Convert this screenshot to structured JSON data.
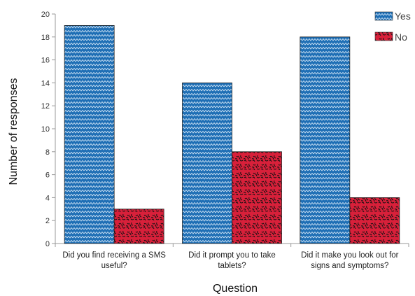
{
  "chart_data": {
    "type": "bar",
    "categories": [
      [
        "Did you find receiving a SMS",
        "useful?"
      ],
      [
        "Did it prompt you to take",
        "tablets?"
      ],
      [
        "Did it make you look out for",
        "signs and symptoms?"
      ]
    ],
    "series": [
      {
        "name": "Yes",
        "values": [
          19,
          14,
          18
        ],
        "color": "#1f6fb5",
        "pattern": "zigzag"
      },
      {
        "name": "No",
        "values": [
          3,
          8,
          4
        ],
        "color": "#d8203a",
        "pattern": "squiggle"
      }
    ],
    "xlabel": "Question",
    "ylabel": "Number of responses",
    "ylim": [
      0,
      20
    ],
    "yticks": [
      0,
      2,
      4,
      6,
      8,
      10,
      12,
      14,
      16,
      18,
      20
    ],
    "legend_position": "top-right",
    "grid": false
  }
}
